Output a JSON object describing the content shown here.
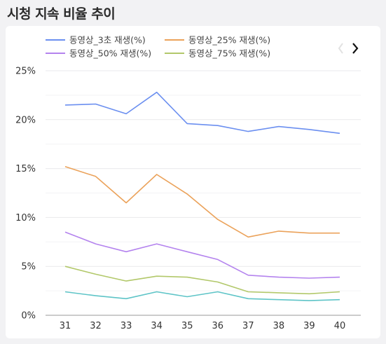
{
  "page": {
    "title": "시청 지속 비율 추이"
  },
  "chart_data": {
    "type": "line",
    "title": "",
    "xlabel": "",
    "ylabel": "",
    "x": [
      "31",
      "32",
      "33",
      "34",
      "35",
      "36",
      "37",
      "38",
      "39",
      "40"
    ],
    "ylim": [
      0,
      25
    ],
    "yticks": [
      0,
      5,
      10,
      15,
      20,
      25
    ],
    "ytick_labels": [
      "0%",
      "5%",
      "10%",
      "15%",
      "20%",
      "25%"
    ],
    "grid": true,
    "legend_position": "top-left",
    "series": [
      {
        "name": "동영상_3초 재생(%)",
        "color": "#6b8ff0",
        "in_legend": true,
        "values": [
          21.5,
          21.6,
          20.6,
          22.8,
          19.6,
          19.4,
          18.8,
          19.3,
          19.0,
          18.6
        ]
      },
      {
        "name": "동영상_25% 재생(%)",
        "color": "#eba25a",
        "in_legend": true,
        "values": [
          15.2,
          14.2,
          11.5,
          14.4,
          12.4,
          9.8,
          8.0,
          8.6,
          8.4,
          8.4
        ]
      },
      {
        "name": "동영상_50% 재생(%)",
        "color": "#b483ee",
        "in_legend": true,
        "values": [
          8.5,
          7.3,
          6.5,
          7.3,
          6.5,
          5.7,
          4.1,
          3.9,
          3.8,
          3.9
        ]
      },
      {
        "name": "동영상_75% 재생(%)",
        "color": "#b2c86a",
        "in_legend": true,
        "values": [
          5.0,
          4.2,
          3.5,
          4.0,
          3.9,
          3.4,
          2.4,
          2.3,
          2.2,
          2.4
        ]
      },
      {
        "name": "",
        "color": "#5ec4c7",
        "in_legend": false,
        "values": [
          2.4,
          2.0,
          1.7,
          2.4,
          1.9,
          2.4,
          1.7,
          1.6,
          1.5,
          1.6
        ]
      }
    ],
    "legend_nav": {
      "prev_icon": "chevron-left-icon",
      "next_icon": "chevron-right-icon"
    }
  }
}
